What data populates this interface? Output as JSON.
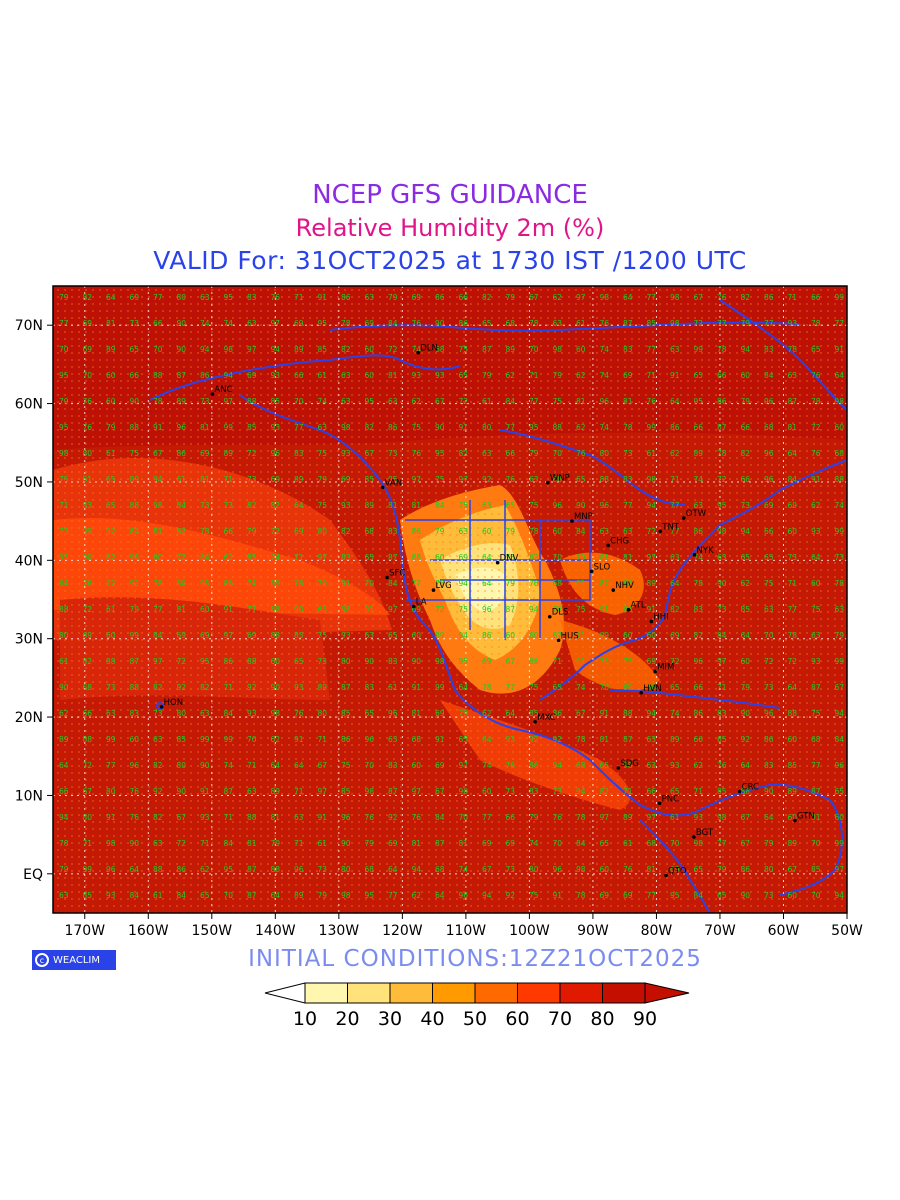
{
  "header": {
    "title": "NCEP GFS GUIDANCE",
    "subtitle": "Relative Humidity 2m (%)",
    "valid": "VALID For: 31OCT2025 at 1730 IST /1200 UTC"
  },
  "footer": {
    "logo_text": "WEACLIM",
    "initial_conditions": "INITIAL CONDITIONS:12Z21OCT2025"
  },
  "map": {
    "projection": "latitude-longitude",
    "lon_range": [
      -175,
      -50
    ],
    "lat_range": [
      -5,
      75
    ],
    "lon_ticks": [
      "170W",
      "160W",
      "150W",
      "140W",
      "130W",
      "120W",
      "110W",
      "100W",
      "90W",
      "80W",
      "70W",
      "60W",
      "50W"
    ],
    "lat_ticks": [
      "EQ",
      "10N",
      "20N",
      "30N",
      "40N",
      "50N",
      "60N",
      "70N"
    ],
    "grid": "dotted",
    "coastline_color": "#2a43e8",
    "value_label_color": "#22c922",
    "stations": [
      {
        "id": "DLN",
        "lon": -117.5,
        "lat": 66.5
      },
      {
        "id": "ANC",
        "lon": -149.9,
        "lat": 61.2
      },
      {
        "id": "VAN",
        "lon": -123.1,
        "lat": 49.3
      },
      {
        "id": "WNP",
        "lon": -97.1,
        "lat": 49.9
      },
      {
        "id": "MNP",
        "lon": -93.3,
        "lat": 45.0
      },
      {
        "id": "TNT",
        "lon": -79.4,
        "lat": 43.7
      },
      {
        "id": "OTW",
        "lon": -75.7,
        "lat": 45.4
      },
      {
        "id": "CHG",
        "lon": -87.6,
        "lat": 41.9
      },
      {
        "id": "NYK",
        "lon": -74.0,
        "lat": 40.7
      },
      {
        "id": "DNV",
        "lon": -105.0,
        "lat": 39.7
      },
      {
        "id": "SLO",
        "lon": -90.2,
        "lat": 38.6
      },
      {
        "id": "SFC",
        "lon": -122.4,
        "lat": 37.8
      },
      {
        "id": "LVG",
        "lon": -115.1,
        "lat": 36.2
      },
      {
        "id": "NHV",
        "lon": -86.8,
        "lat": 36.2
      },
      {
        "id": "LA",
        "lon": -118.2,
        "lat": 34.1
      },
      {
        "id": "ATL",
        "lon": -84.4,
        "lat": 33.7
      },
      {
        "id": "DLS",
        "lon": -96.8,
        "lat": 32.8
      },
      {
        "id": "HHI",
        "lon": -80.8,
        "lat": 32.2
      },
      {
        "id": "HUS",
        "lon": -95.4,
        "lat": 29.8
      },
      {
        "id": "MIM",
        "lon": -80.2,
        "lat": 25.8
      },
      {
        "id": "HVN",
        "lon": -82.4,
        "lat": 23.1
      },
      {
        "id": "HON",
        "lon": -157.9,
        "lat": 21.3
      },
      {
        "id": "MXC",
        "lon": -99.1,
        "lat": 19.4
      },
      {
        "id": "SDG",
        "lon": -86.0,
        "lat": 13.5
      },
      {
        "id": "CRC",
        "lon": -66.9,
        "lat": 10.5
      },
      {
        "id": "PNC",
        "lon": -79.5,
        "lat": 9.0
      },
      {
        "id": "BGT",
        "lon": -74.1,
        "lat": 4.7
      },
      {
        "id": "GTN",
        "lon": -58.2,
        "lat": 6.8
      },
      {
        "id": "QTO",
        "lon": -78.5,
        "lat": -0.2
      }
    ]
  },
  "legend": {
    "levels": [
      "10",
      "20",
      "30",
      "40",
      "50",
      "60",
      "70",
      "80",
      "90"
    ],
    "colors": [
      "#ffffff",
      "#fff7b0",
      "#ffe27a",
      "#ffbb3a",
      "#ff9a00",
      "#ff6a00",
      "#ff3a00",
      "#e01a00",
      "#c40e00",
      "#c40e00"
    ]
  },
  "palette": {
    "title": "#8a2be2",
    "subtitle": "#e0158a",
    "valid": "#2a43e8",
    "initial": "#7b8cf0"
  }
}
